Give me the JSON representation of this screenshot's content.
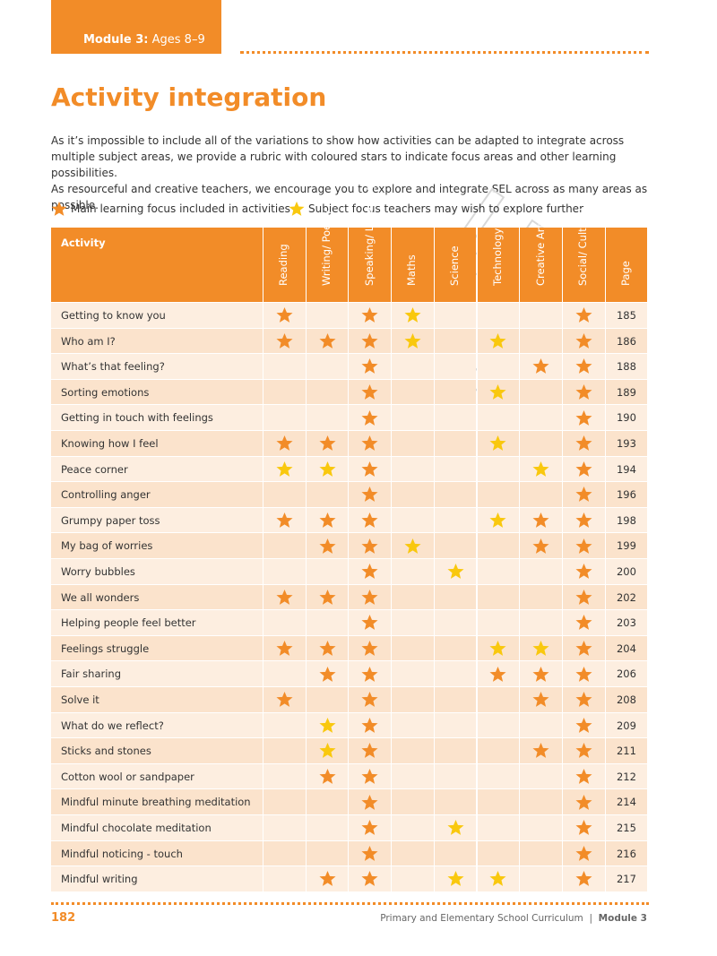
{
  "header": {
    "module": "Module 3:",
    "ages": "Ages 8–9"
  },
  "title": "Activity integration",
  "intro": [
    "As it’s impossible to include all of the variations to show how activities can be adapted to integrate across multiple subject areas, we provide a rubric with coloured stars to indicate focus areas and other learning possibilities.",
    "As resourceful and creative teachers, we encourage you to explore and integrate SEL across as many areas as possible."
  ],
  "legend": [
    {
      "label": "Main learning focus included in activities",
      "color": "#f28c28"
    },
    {
      "label": "Subject focus teachers may wish to explore further",
      "color": "#f9c80e"
    }
  ],
  "table": {
    "activity_header": "Activity",
    "columns": [
      "Reading",
      "Writing/ Poetry",
      "Speaking/ Listening",
      "Maths",
      "Science",
      "Technology",
      "Creative Arts",
      "Social/ Cultural"
    ],
    "page_header": "Page",
    "rows": [
      {
        "activity": "Getting to know you",
        "stars": [
          0,
          null,
          0,
          1,
          null,
          null,
          null,
          0
        ],
        "page": "185"
      },
      {
        "activity": "Who am I?",
        "stars": [
          0,
          0,
          0,
          1,
          null,
          1,
          null,
          0
        ],
        "page": "186"
      },
      {
        "activity": "What’s that feeling?",
        "stars": [
          null,
          null,
          0,
          null,
          null,
          null,
          0,
          0
        ],
        "page": "188"
      },
      {
        "activity": "Sorting emotions",
        "stars": [
          null,
          null,
          0,
          null,
          null,
          1,
          null,
          0
        ],
        "page": "189"
      },
      {
        "activity": "Getting in touch with feelings",
        "stars": [
          null,
          null,
          0,
          null,
          null,
          null,
          null,
          0
        ],
        "page": "190"
      },
      {
        "activity": "Knowing how I feel",
        "stars": [
          0,
          0,
          0,
          null,
          null,
          1,
          null,
          0
        ],
        "page": "193"
      },
      {
        "activity": "Peace corner",
        "stars": [
          1,
          1,
          0,
          null,
          null,
          null,
          1,
          0
        ],
        "page": "194"
      },
      {
        "activity": "Controlling anger",
        "stars": [
          null,
          null,
          0,
          null,
          null,
          null,
          null,
          0
        ],
        "page": "196"
      },
      {
        "activity": "Grumpy paper toss",
        "stars": [
          0,
          0,
          0,
          null,
          null,
          1,
          0,
          0
        ],
        "page": "198"
      },
      {
        "activity": "My bag of worries",
        "stars": [
          null,
          0,
          0,
          1,
          null,
          null,
          0,
          0
        ],
        "page": "199"
      },
      {
        "activity": "Worry bubbles",
        "stars": [
          null,
          null,
          0,
          null,
          1,
          null,
          null,
          0
        ],
        "page": "200"
      },
      {
        "activity": "We all wonders",
        "stars": [
          0,
          0,
          0,
          null,
          null,
          null,
          null,
          0
        ],
        "page": "202"
      },
      {
        "activity": "Helping people feel better",
        "stars": [
          null,
          null,
          0,
          null,
          null,
          null,
          null,
          0
        ],
        "page": "203"
      },
      {
        "activity": "Feelings struggle",
        "stars": [
          0,
          0,
          0,
          null,
          null,
          1,
          1,
          0
        ],
        "page": "204"
      },
      {
        "activity": "Fair sharing",
        "stars": [
          null,
          0,
          0,
          null,
          null,
          0,
          0,
          0
        ],
        "page": "206"
      },
      {
        "activity": "Solve it",
        "stars": [
          0,
          null,
          0,
          null,
          null,
          null,
          0,
          0
        ],
        "page": "208"
      },
      {
        "activity": "What do we reflect?",
        "stars": [
          null,
          1,
          0,
          null,
          null,
          null,
          null,
          0
        ],
        "page": "209"
      },
      {
        "activity": "Sticks and stones",
        "stars": [
          null,
          1,
          0,
          null,
          null,
          null,
          0,
          0
        ],
        "page": "211"
      },
      {
        "activity": "Cotton wool or sandpaper",
        "stars": [
          null,
          0,
          0,
          null,
          null,
          null,
          null,
          0
        ],
        "page": "212"
      },
      {
        "activity": "Mindful minute breathing meditation",
        "stars": [
          null,
          null,
          0,
          null,
          null,
          null,
          null,
          0
        ],
        "page": "214"
      },
      {
        "activity": "Mindful chocolate meditation",
        "stars": [
          null,
          null,
          0,
          null,
          1,
          null,
          null,
          0
        ],
        "page": "215"
      },
      {
        "activity": "Mindful noticing - touch",
        "stars": [
          null,
          null,
          0,
          null,
          null,
          null,
          null,
          0
        ],
        "page": "216"
      },
      {
        "activity": "Mindful writing",
        "stars": [
          null,
          0,
          0,
          null,
          1,
          1,
          null,
          0
        ],
        "page": "217"
      }
    ]
  },
  "watermark": "SAMPLE",
  "footer": {
    "page_number": "182",
    "source": "Primary and Elementary School Curriculum",
    "module": "Module 3"
  }
}
